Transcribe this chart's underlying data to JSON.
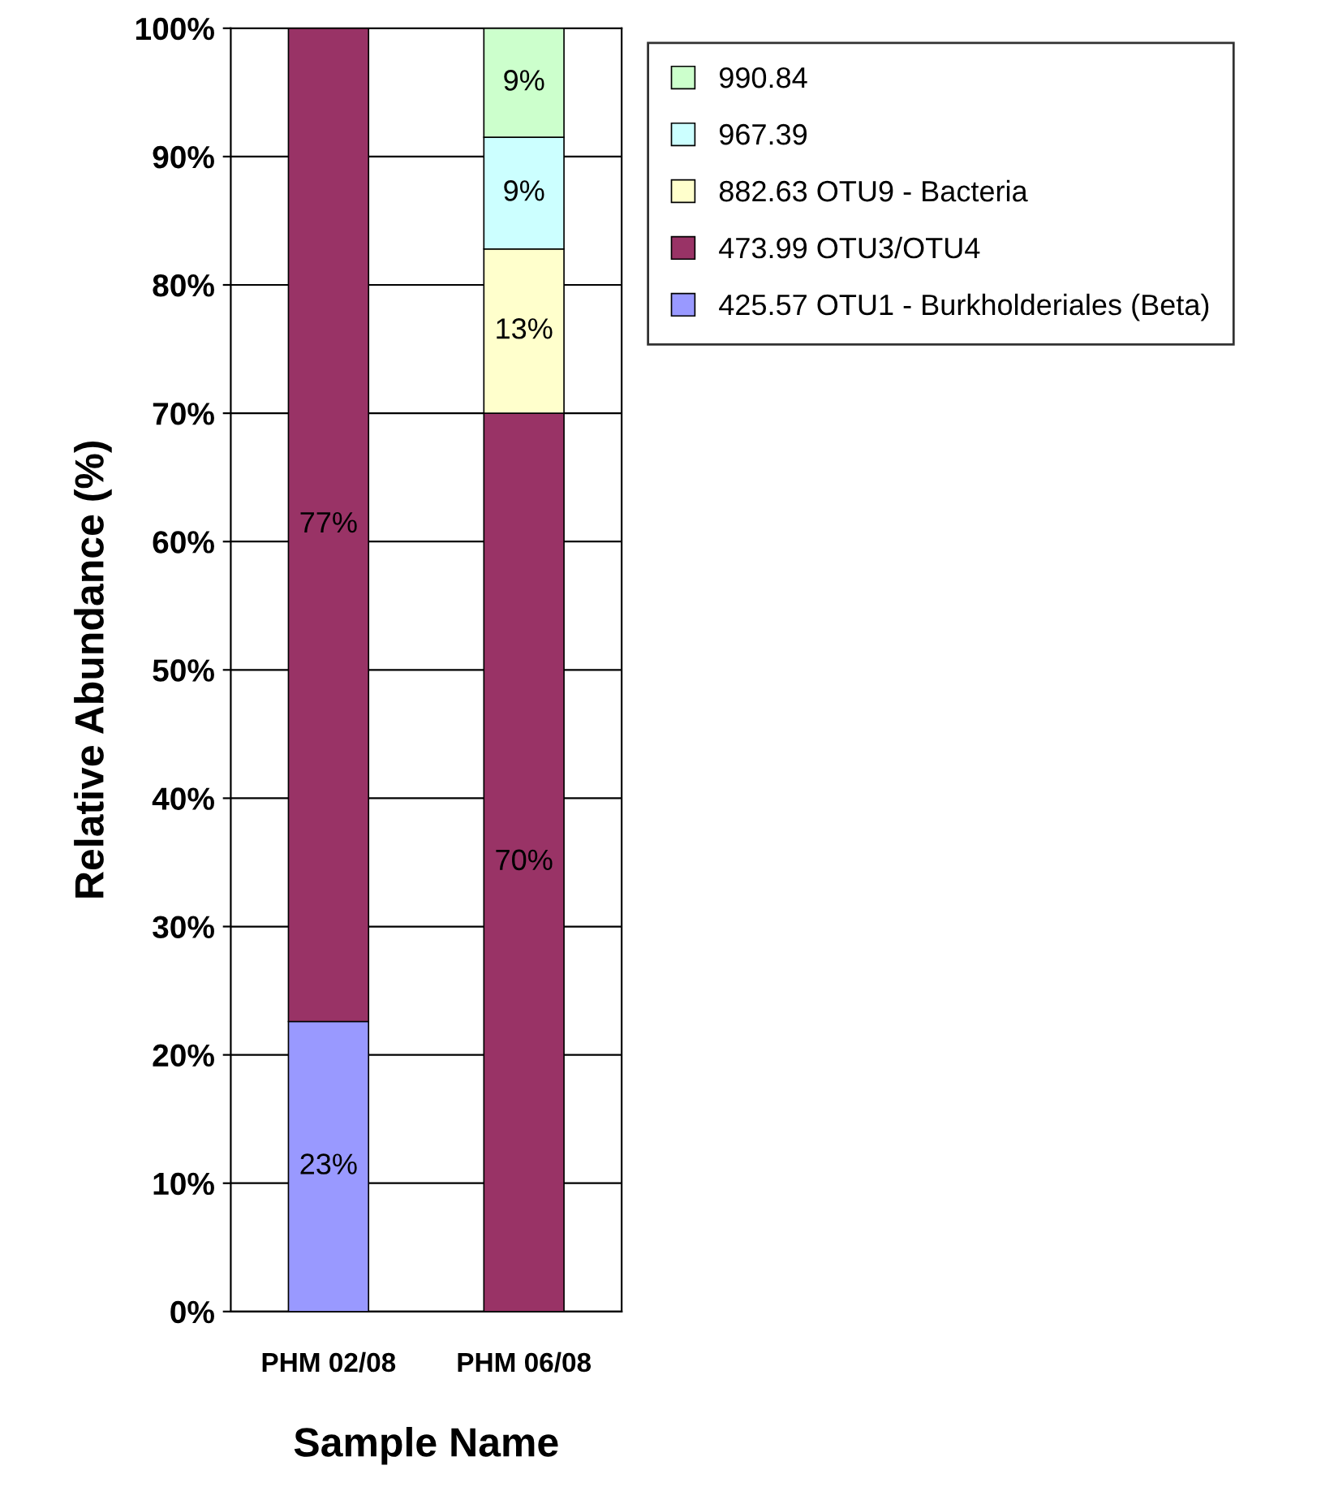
{
  "chart_data": {
    "type": "bar",
    "stacked": true,
    "xlabel": "Sample Name",
    "ylabel": "Relative Abundance (%)",
    "categories": [
      "PHM 02/08",
      "PHM 06/08"
    ],
    "series": [
      {
        "name": "425.57 OTU1 - Burkholderiales (Beta)",
        "color": "#9999ff",
        "values": [
          22.6,
          null
        ],
        "value_labels": [
          "23%",
          null
        ]
      },
      {
        "name": "473.99 OTU3/OTU4",
        "color": "#993366",
        "values": [
          77.4,
          70.0
        ],
        "value_labels": [
          "77%",
          "70%"
        ]
      },
      {
        "name": "882.63 OTU9 - Bacteria",
        "color": "#ffffcc",
        "values": [
          null,
          12.8
        ],
        "value_labels": [
          null,
          "13%"
        ]
      },
      {
        "name": "967.39",
        "color": "#ccffff",
        "values": [
          null,
          8.7
        ],
        "value_labels": [
          null,
          "9%"
        ]
      },
      {
        "name": "990.84",
        "color": "#ccffcc",
        "values": [
          null,
          8.5
        ],
        "value_labels": [
          null,
          "9%"
        ]
      }
    ],
    "ylim": [
      0,
      100
    ],
    "yticks": [
      {
        "value": 0,
        "label": "0%"
      },
      {
        "value": 10,
        "label": "10%"
      },
      {
        "value": 20,
        "label": "20%"
      },
      {
        "value": 30,
        "label": "30%"
      },
      {
        "value": 40,
        "label": "40%"
      },
      {
        "value": 50,
        "label": "50%"
      },
      {
        "value": 60,
        "label": "60%"
      },
      {
        "value": 70,
        "label": "70%"
      },
      {
        "value": 80,
        "label": "80%"
      },
      {
        "value": 90,
        "label": "90%"
      },
      {
        "value": 100,
        "label": "100%"
      }
    ],
    "grid": "y",
    "legend": "top right"
  }
}
